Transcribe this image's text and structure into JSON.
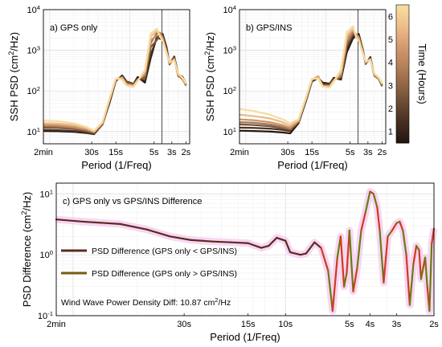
{
  "figure": {
    "cbar": {
      "label": "Time (Hours)",
      "ticks": [
        "1",
        "2",
        "3",
        "4",
        "5",
        "6"
      ],
      "colors": [
        "#231610",
        "#452e20",
        "#6b4a33",
        "#936747",
        "#b7825a",
        "#d79c70",
        "#efbf8a",
        "#f6dc9f"
      ]
    },
    "units": {
      "sup2": "2"
    }
  },
  "chart_data": [
    {
      "type": "line",
      "id": "a",
      "panel_label": "a) GPS only",
      "ylabel": "SSH PSD (cm²/Hz)",
      "xlabel": "Period (1/Freq)",
      "x_scale": "log (frequency)",
      "ylim": [
        5,
        10000
      ],
      "y_ticks": [
        {
          "v": 10,
          "e": "1"
        },
        {
          "v": 100,
          "e": "2"
        },
        {
          "v": 1000,
          "e": "3"
        },
        {
          "v": 10000,
          "e": "4"
        }
      ],
      "x_ticks": [
        {
          "period_s": 120,
          "label": "2min"
        },
        {
          "period_s": 30,
          "label": "30s"
        },
        {
          "period_s": 15,
          "label": "15s"
        },
        {
          "period_s": 5,
          "label": "5s"
        },
        {
          "period_s": 3,
          "label": "3s"
        },
        {
          "period_s": 2,
          "label": "2s"
        }
      ],
      "reference_period_s": 4,
      "x_period_s": [
        120,
        80,
        50,
        35,
        28,
        22,
        18,
        15,
        12.5,
        11,
        9,
        8,
        6.5,
        5.5,
        4.6,
        4.2,
        3.9,
        3.5,
        3.2,
        2.8,
        2.5,
        2.2,
        2
      ],
      "series": [
        {
          "values": [
            10.3,
            10.2,
            9.8,
            9.2,
            8.6,
            15,
            50,
            175,
            240,
            170,
            150,
            220,
            160,
            650,
            2200,
            1900,
            2500,
            1200,
            450,
            700,
            260,
            220,
            150
          ]
        },
        {
          "values": [
            11.0,
            10.8,
            10.3,
            9.5,
            8.8,
            15,
            54,
            180,
            230,
            160,
            150,
            200,
            180,
            800,
            2000,
            2100,
            2400,
            1100,
            480,
            680,
            250,
            210,
            140
          ]
        },
        {
          "values": [
            12.5,
            12.3,
            11.5,
            10.2,
            9.2,
            15,
            56,
            185,
            220,
            165,
            145,
            195,
            210,
            1200,
            1800,
            2500,
            2200,
            1000,
            470,
            640,
            230,
            200,
            135
          ]
        },
        {
          "values": [
            13.5,
            13.2,
            12.2,
            10.8,
            9.5,
            16,
            58,
            190,
            210,
            150,
            140,
            190,
            240,
            1500,
            2700,
            2700,
            2000,
            950,
            460,
            620,
            240,
            190,
            140
          ]
        },
        {
          "values": [
            14.5,
            14.3,
            13.0,
            11.4,
            9.9,
            16,
            60,
            195,
            215,
            145,
            135,
            185,
            260,
            1800,
            2300,
            2600,
            1900,
            900,
            480,
            600,
            250,
            200,
            145
          ]
        },
        {
          "values": [
            16.0,
            15.8,
            14.4,
            12.2,
            10.2,
            17,
            62,
            200,
            200,
            140,
            130,
            180,
            300,
            2200,
            3000,
            2300,
            1800,
            880,
            500,
            580,
            260,
            205,
            150
          ]
        },
        {
          "values": [
            18.5,
            18.0,
            16.0,
            13.0,
            10.5,
            17,
            65,
            205,
            190,
            135,
            125,
            175,
            330,
            2600,
            3400,
            2100,
            1700,
            860,
            520,
            560,
            270,
            210,
            155
          ]
        }
      ]
    },
    {
      "type": "line",
      "id": "b",
      "panel_label": "b) GPS/INS",
      "ylabel": "SSH PSD (cm²/Hz)",
      "xlabel": "Period (1/Freq)",
      "x_scale": "log (frequency)",
      "ylim": [
        5,
        10000
      ],
      "y_ticks": [
        {
          "v": 10,
          "e": "1"
        },
        {
          "v": 100,
          "e": "2"
        },
        {
          "v": 1000,
          "e": "3"
        },
        {
          "v": 10000,
          "e": "4"
        }
      ],
      "x_ticks": [
        {
          "period_s": 120,
          "label": "2min"
        },
        {
          "period_s": 30,
          "label": "30s"
        },
        {
          "period_s": 15,
          "label": "15s"
        },
        {
          "period_s": 5,
          "label": "5s"
        },
        {
          "period_s": 3,
          "label": "3s"
        },
        {
          "period_s": 2,
          "label": "2s"
        }
      ],
      "reference_period_s": 4,
      "x_period_s": [
        120,
        80,
        50,
        35,
        28,
        22,
        18,
        15,
        12.5,
        11,
        9,
        8,
        6.5,
        5.5,
        4.6,
        4.2,
        3.9,
        3.5,
        3.2,
        2.8,
        2.5,
        2.2,
        2
      ],
      "series": [
        {
          "values": [
            10.5,
            10.3,
            10.0,
            9.5,
            9.0,
            16,
            52,
            170,
            210,
            160,
            150,
            210,
            190,
            900,
            2000,
            2200,
            2500,
            1100,
            460,
            680,
            250,
            210,
            140
          ]
        },
        {
          "values": [
            12.5,
            12.3,
            11.8,
            11.0,
            10.2,
            17,
            55,
            175,
            215,
            150,
            145,
            200,
            200,
            1100,
            2300,
            2300,
            2300,
            1050,
            470,
            650,
            240,
            200,
            135
          ]
        },
        {
          "values": [
            15.0,
            14.5,
            13.5,
            12.0,
            11.0,
            17,
            56,
            180,
            220,
            140,
            140,
            190,
            220,
            1300,
            2600,
            2400,
            2200,
            1000,
            470,
            630,
            235,
            195,
            130
          ]
        },
        {
          "values": [
            17.0,
            16.5,
            15.0,
            13.0,
            11.5,
            18,
            58,
            185,
            225,
            135,
            135,
            185,
            230,
            1500,
            2800,
            2500,
            2100,
            980,
            480,
            610,
            240,
            200,
            140
          ]
        },
        {
          "values": [
            20.0,
            19.0,
            17.0,
            14.5,
            12.5,
            18,
            60,
            190,
            230,
            130,
            130,
            180,
            260,
            1900,
            3100,
            2400,
            2000,
            950,
            500,
            600,
            250,
            205,
            145
          ]
        },
        {
          "values": [
            26.0,
            24.0,
            21.0,
            17.0,
            14.0,
            19,
            62,
            195,
            215,
            130,
            125,
            175,
            290,
            2300,
            3400,
            2200,
            1850,
            920,
            520,
            590,
            260,
            210,
            150
          ]
        },
        {
          "values": [
            36.0,
            32.0,
            26.0,
            20.0,
            16.0,
            20,
            65,
            200,
            200,
            128,
            120,
            170,
            330,
            2800,
            3900,
            2000,
            1700,
            880,
            540,
            570,
            270,
            215,
            155
          ]
        }
      ]
    },
    {
      "type": "line",
      "id": "c",
      "panel_label": "c) GPS only vs GPS/INS Difference",
      "ylabel": "PSD Difference (cm²/Hz)",
      "xlabel": "Period (1/Freq)",
      "x_scale": "log (frequency)",
      "ylim": [
        0.1,
        15
      ],
      "y_ticks": [
        {
          "v": 0.1,
          "e": "-1"
        },
        {
          "v": 1,
          "e": "0"
        },
        {
          "v": 10,
          "e": "1"
        }
      ],
      "x_ticks": [
        {
          "period_s": 120,
          "label": "2min"
        },
        {
          "period_s": 30,
          "label": "30s"
        },
        {
          "period_s": 15,
          "label": "15s"
        },
        {
          "period_s": 10,
          "label": "10s"
        },
        {
          "period_s": 5,
          "label": "5s"
        },
        {
          "period_s": 4,
          "label": "4s"
        },
        {
          "period_s": 3,
          "label": "3s"
        },
        {
          "period_s": 2,
          "label": "2s"
        }
      ],
      "reference_period_s": null,
      "x_period_s": [
        120,
        90,
        60,
        45,
        35,
        28,
        22,
        18,
        15,
        13,
        12,
        11,
        10,
        9.5,
        8.5,
        8,
        7.3,
        6.8,
        6.3,
        6,
        5.7,
        5.5,
        5.3,
        5.15,
        5,
        4.8,
        4.6,
        4.4,
        4.2,
        4,
        3.85,
        3.7,
        3.6,
        3.45,
        3.3,
        3.15,
        3,
        2.9,
        2.8,
        2.7,
        2.6,
        2.5,
        2.42,
        2.35,
        2.3,
        2.25,
        2.2,
        2.15,
        2.1,
        2.05,
        2
      ],
      "values": [
        3.8,
        3.5,
        3.2,
        2.6,
        2.0,
        1.75,
        1.65,
        1.6,
        1.55,
        1.3,
        1.4,
        1.9,
        1.7,
        1.1,
        1.0,
        1.05,
        1.6,
        1.3,
        0.55,
        0.12,
        0.9,
        2.0,
        0.3,
        0.5,
        2.5,
        0.25,
        0.6,
        2.5,
        5.0,
        10.87,
        10.0,
        6.0,
        2.5,
        0.35,
        2.0,
        2.5,
        3.3,
        3.5,
        2.5,
        1.0,
        0.15,
        0.7,
        1.4,
        1.2,
        0.4,
        0.6,
        0.9,
        0.3,
        0.12,
        1.5,
        2.7
      ],
      "legend": [
        {
          "label": "PSD Difference (GPS only < GPS/INS)",
          "color": "#5b2a22"
        },
        {
          "label": "PSD Difference (GPS only > GPS/INS)",
          "color": "#7a5a12"
        }
      ],
      "annotation": {
        "text": "Wind Wave Power Density Diff: 10.87 cm",
        "sup": "2",
        "suffix": "/Hz"
      }
    }
  ]
}
